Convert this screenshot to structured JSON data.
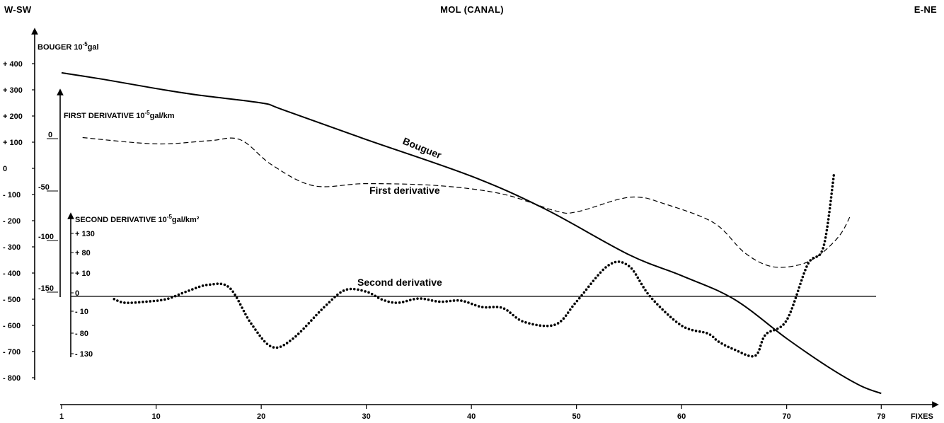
{
  "chart_data": {
    "type": "line",
    "title": "MOL (CANAL)",
    "left_label": "W-SW",
    "right_label": "E-NE",
    "x_axis": {
      "label": "FIXES",
      "range": [
        1,
        79
      ],
      "ticks": [
        1,
        10,
        20,
        30,
        40,
        50,
        60,
        70,
        79
      ],
      "tick_labels": [
        "1",
        "10",
        "20",
        "30",
        "40",
        "50",
        "60",
        "70",
        "79"
      ]
    },
    "axes": [
      {
        "id": "bouguer",
        "label_main": "BOUGER 10",
        "label_exp": "-5",
        "label_unit": "gal",
        "range": [
          -800,
          400
        ],
        "ticks": [
          "+ 400",
          "+ 300",
          "+ 200",
          "+ 100",
          "0",
          "- 100",
          "- 200",
          "- 300",
          "- 400",
          "- 500",
          "- 600",
          "- 700",
          "- 800"
        ],
        "tick_values": [
          400,
          300,
          200,
          100,
          0,
          -100,
          -200,
          -300,
          -400,
          -500,
          -600,
          -700,
          -800
        ]
      },
      {
        "id": "first",
        "label_main": "FIRST DERIVATIVE 10",
        "label_exp": "-5",
        "label_unit": "gal/km",
        "ticks": [
          "0",
          "-50",
          "-100",
          "-150"
        ],
        "tick_values": [
          0,
          -50,
          -100,
          -150
        ]
      },
      {
        "id": "second",
        "label_main": "SECOND DERIVATIVE 10",
        "label_exp": "-5",
        "label_unit": "gal/km²",
        "ticks": [
          "+ 130",
          "+ 80",
          "+ 10",
          "0",
          "- 10",
          "- 80",
          "- 130"
        ],
        "tick_values": [
          130,
          80,
          10,
          0,
          -10,
          -80,
          -130
        ]
      }
    ],
    "series": [
      {
        "name": "Bouguer",
        "axis": "bouguer",
        "style": "solid",
        "x": [
          1,
          5,
          10,
          14,
          20,
          22,
          30,
          40,
          47,
          55,
          60,
          65,
          70,
          74,
          77,
          79
        ],
        "y": [
          365,
          340,
          305,
          280,
          250,
          225,
          110,
          -30,
          -155,
          -330,
          -410,
          -500,
          -650,
          -760,
          -830,
          -860
        ]
      },
      {
        "name": "First derivative",
        "axis": "first",
        "style": "dashed",
        "x": [
          3,
          10,
          15,
          18,
          21,
          25,
          30,
          37,
          43,
          48,
          50,
          54,
          56,
          58,
          63,
          66,
          68.5,
          71,
          73,
          75,
          76
        ],
        "y": [
          1,
          -5,
          -2,
          -1,
          -25,
          -45,
          -43,
          -45,
          -53,
          -69,
          -70,
          -58,
          -56,
          -61,
          -80,
          -109,
          -122,
          -121,
          -112,
          -93,
          -75
        ]
      },
      {
        "name": "Second derivative",
        "axis": "second",
        "style": "dotted",
        "x": [
          6,
          7,
          9,
          11,
          13,
          15,
          17,
          19,
          21,
          23,
          26,
          28,
          30,
          31.5,
          33,
          35,
          37,
          39,
          41,
          43,
          45,
          48,
          50,
          53,
          55,
          57,
          60,
          62.5,
          63.5,
          65,
          67,
          68,
          70,
          72,
          73.5,
          74.5
        ],
        "y": [
          -5,
          -12,
          -10,
          -5,
          10,
          22,
          16,
          -50,
          -95,
          -80,
          -20,
          12,
          9,
          -6,
          -12,
          -4,
          -10,
          -8,
          -20,
          -22,
          -48,
          -53,
          -10,
          58,
          57,
          0,
          -55,
          -70,
          -85,
          -100,
          -112,
          -72,
          -45,
          60,
          93,
          230
        ]
      }
    ],
    "annotations": {
      "bouguer": "Bouguer",
      "first": "First derivative",
      "second": "Second derivative"
    },
    "grid": false,
    "legend": "none"
  }
}
